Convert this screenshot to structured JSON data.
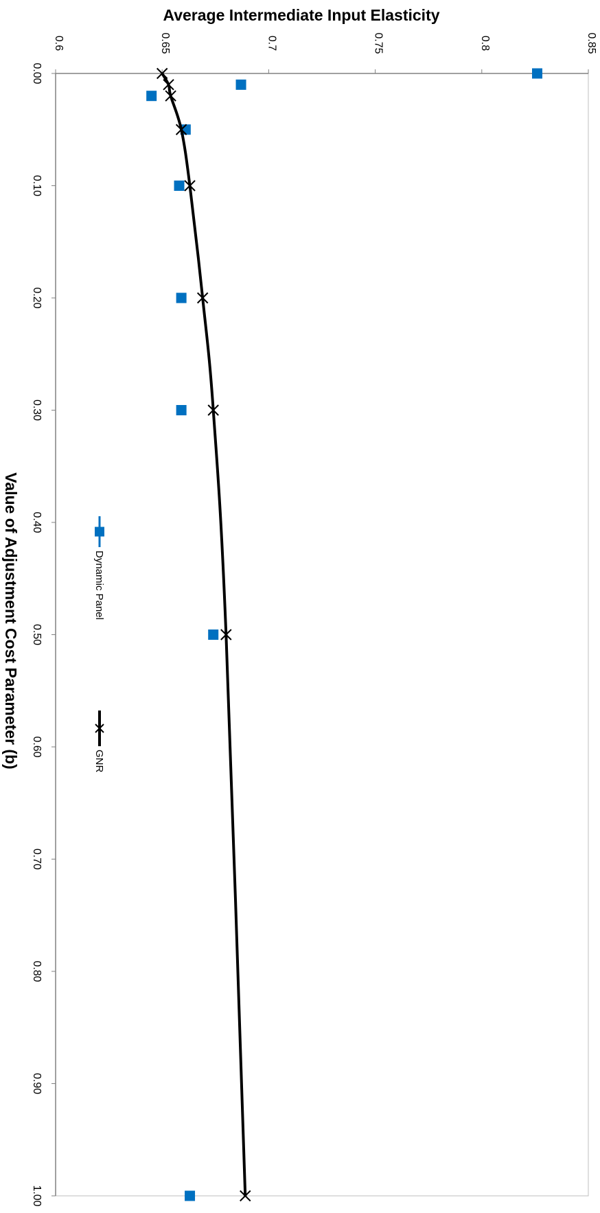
{
  "chart_data": {
    "type": "scatter",
    "orientation": "rotated-90-clockwise",
    "title": "",
    "xlabel": "Value of Adjustment Cost Parameter (b)",
    "ylabel": "Average Intermediate Input Elasticity",
    "xlim": [
      0.0,
      1.0
    ],
    "ylim": [
      0.6,
      0.85
    ],
    "x_ticks": [
      "0.00",
      "0.10",
      "0.20",
      "0.30",
      "0.40",
      "0.50",
      "0.60",
      "0.70",
      "0.80",
      "0.90",
      "1.00"
    ],
    "y_ticks": [
      "0.6",
      "0.65",
      "0.7",
      "0.75",
      "0.8",
      "0.85"
    ],
    "grid": false,
    "legend_position": "inside-middle",
    "series": [
      {
        "name": "Dynamic Panel",
        "color": "#0070C0",
        "marker": "square",
        "line": false,
        "x": [
          0.0,
          0.01,
          0.02,
          0.05,
          0.1,
          0.2,
          0.3,
          0.5,
          1.0
        ],
        "y": [
          0.826,
          0.687,
          0.645,
          0.661,
          0.658,
          0.659,
          0.659,
          0.674,
          0.663
        ]
      },
      {
        "name": "GNR",
        "color": "#000000",
        "marker": "x",
        "line": true,
        "x": [
          0.0,
          0.01,
          0.02,
          0.05,
          0.1,
          0.2,
          0.3,
          0.5,
          1.0
        ],
        "y": [
          0.65,
          0.653,
          0.654,
          0.659,
          0.663,
          0.669,
          0.674,
          0.68,
          0.689
        ]
      }
    ]
  }
}
